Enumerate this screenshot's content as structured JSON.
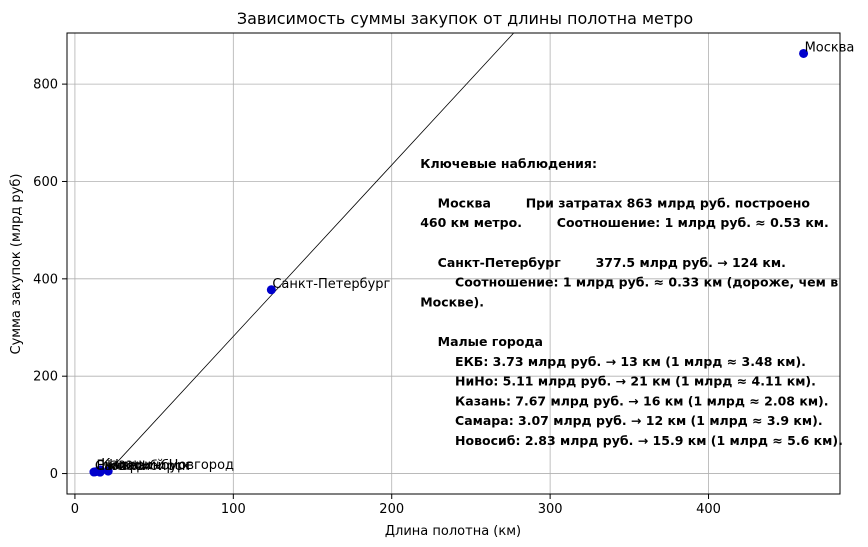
{
  "chart_data": {
    "type": "scatter",
    "title": "Зависимость суммы закупок от длины полотна метро",
    "xlabel": "Длина полотна (км)",
    "ylabel": "Сумма закупок (млрд руб)",
    "xlim": [
      -5,
      483
    ],
    "ylim": [
      -42,
      905
    ],
    "xticks": [
      0,
      100,
      200,
      300,
      400
    ],
    "yticks": [
      0,
      200,
      400,
      600,
      800
    ],
    "grid": true,
    "point_color": "#0000cc",
    "points": [
      {
        "label": "Москва",
        "x": 460,
        "y": 863
      },
      {
        "label": "Санкт-Петербург",
        "x": 124,
        "y": 377.5
      },
      {
        "label": "Екатеринбург",
        "x": 13,
        "y": 3.73
      },
      {
        "label": "Нижний Новгород",
        "x": 21,
        "y": 5.11
      },
      {
        "label": "Казань",
        "x": 16,
        "y": 7.67
      },
      {
        "label": "Самара",
        "x": 12,
        "y": 3.07
      },
      {
        "label": "Новосибирск",
        "x": 15.9,
        "y": 2.83
      }
    ],
    "trendline": {
      "x": [
        20,
        277
      ],
      "y": [
        0,
        905
      ],
      "color": "#000000"
    },
    "annotation": {
      "lines": [
        "Ключевые наблюдения:",
        "",
        "    Москва        При затратах 863 млрд руб. построено",
        "460 км метро.        Соотношение: 1 млрд руб. ≈ 0.53 км.",
        "",
        "    Санкт-Петербург        377.5 млрд руб. → 124 км.",
        "        Соотношение: 1 млрд руб. ≈ 0.33 км (дороже, чем в",
        "Москве).",
        "",
        "    Малые города",
        "        ЕКБ: 3.73 млрд руб. → 13 км (1 млрд ≈ 3.48 км).",
        "        НиНо: 5.11 млрд руб. → 21 км (1 млрд ≈ 4.11 км).",
        "        Казань: 7.67 млрд руб. → 16 км (1 млрд ≈ 2.08 км).",
        "        Самара: 3.07 млрд руб. → 12 км (1 млрд ≈ 3.9 км).",
        "        Новосиб: 2.83 млрд руб. → 15.9 км (1 млрд ≈ 5.6 км)."
      ]
    }
  }
}
